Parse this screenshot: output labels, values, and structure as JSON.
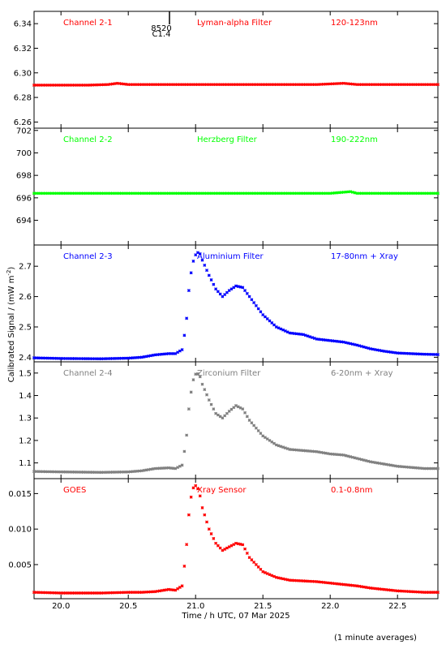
{
  "figure": {
    "ylabel": "Calibrated Signal / (mW m",
    "ylabel_sup": "-2",
    "ylabel_close": ")",
    "xlabel": "Time / h UTC, 07 Mar 2025",
    "footnote": "(1 minute averages)",
    "flare_marker": {
      "time": 20.82,
      "label_top": "8520",
      "label_bottom": "C1.4"
    },
    "x_ticks": [
      "20.0",
      "20.5",
      "21.0",
      "21.5",
      "22.0",
      "22.5"
    ]
  },
  "chart_data": [
    {
      "type": "scatter",
      "channel": "Channel 2-1",
      "filter": "Lyman-alpha Filter",
      "band": "120-123nm",
      "color": "#ff0000",
      "xlim": [
        19.8,
        22.8
      ],
      "ylim": [
        6.255,
        6.35
      ],
      "yticks": [
        "6.26",
        "6.28",
        "6.30",
        "6.32",
        "6.34"
      ],
      "x": [
        19.8,
        20.2,
        20.35,
        20.42,
        20.5,
        20.7,
        21.0,
        21.5,
        21.9,
        22.1,
        22.2,
        22.4,
        22.8
      ],
      "y": [
        6.29,
        6.29,
        6.2905,
        6.2915,
        6.2905,
        6.2905,
        6.2905,
        6.2905,
        6.2905,
        6.2915,
        6.2905,
        6.2905,
        6.2905
      ]
    },
    {
      "type": "scatter",
      "channel": "Channel 2-2",
      "filter": "Herzberg Filter",
      "band": "190-222nm",
      "color": "#00ff00",
      "xlim": [
        19.8,
        22.8
      ],
      "ylim": [
        691.8,
        702.2
      ],
      "yticks": [
        "694",
        "696",
        "698",
        "700",
        "702"
      ],
      "x": [
        19.8,
        20.5,
        21.0,
        21.5,
        22.0,
        22.15,
        22.2,
        22.8
      ],
      "y": [
        696.4,
        696.4,
        696.4,
        696.4,
        696.4,
        696.55,
        696.4,
        696.4
      ],
      "scale": "linear"
    },
    {
      "type": "scatter",
      "channel": "Channel 2-3",
      "filter": "Aluminium Filter",
      "band": "17-80nm + Xray",
      "color": "#0000ff",
      "xlim": [
        19.8,
        22.8
      ],
      "ylim": [
        2.385,
        2.77
      ],
      "yticks": [
        "2.4",
        "2.5",
        "2.6",
        "2.7"
      ],
      "x": [
        19.8,
        20.0,
        20.3,
        20.5,
        20.6,
        20.7,
        20.8,
        20.85,
        20.9,
        20.93,
        20.95,
        20.97,
        20.99,
        21.01,
        21.03,
        21.05,
        21.1,
        21.15,
        21.2,
        21.25,
        21.3,
        21.35,
        21.4,
        21.5,
        21.6,
        21.7,
        21.8,
        21.9,
        22.0,
        22.1,
        22.2,
        22.3,
        22.4,
        22.5,
        22.6,
        22.7,
        22.8
      ],
      "y": [
        2.398,
        2.396,
        2.395,
        2.397,
        2.4,
        2.408,
        2.412,
        2.412,
        2.425,
        2.51,
        2.62,
        2.69,
        2.73,
        2.745,
        2.745,
        2.72,
        2.67,
        2.625,
        2.6,
        2.62,
        2.635,
        2.63,
        2.6,
        2.54,
        2.5,
        2.48,
        2.475,
        2.46,
        2.455,
        2.45,
        2.44,
        2.428,
        2.42,
        2.414,
        2.412,
        2.41,
        2.409
      ]
    },
    {
      "type": "scatter",
      "channel": "Channel 2-4",
      "filter": "Zirconium Filter",
      "band": "6-20nm + Xray",
      "color": "#808080",
      "xlim": [
        19.8,
        22.8
      ],
      "ylim": [
        1.03,
        1.55
      ],
      "yticks": [
        "1.1",
        "1.2",
        "1.3",
        "1.4",
        "1.5"
      ],
      "x": [
        19.8,
        20.0,
        20.3,
        20.5,
        20.6,
        20.7,
        20.8,
        20.85,
        20.9,
        20.93,
        20.95,
        20.97,
        20.99,
        21.01,
        21.03,
        21.05,
        21.1,
        21.15,
        21.2,
        21.25,
        21.3,
        21.35,
        21.4,
        21.5,
        21.6,
        21.7,
        21.8,
        21.9,
        22.0,
        22.1,
        22.2,
        22.3,
        22.4,
        22.5,
        22.6,
        22.7,
        22.8
      ],
      "y": [
        1.062,
        1.06,
        1.058,
        1.06,
        1.065,
        1.075,
        1.078,
        1.075,
        1.09,
        1.2,
        1.34,
        1.43,
        1.49,
        1.5,
        1.49,
        1.45,
        1.38,
        1.32,
        1.3,
        1.33,
        1.355,
        1.34,
        1.29,
        1.22,
        1.18,
        1.16,
        1.155,
        1.15,
        1.14,
        1.135,
        1.12,
        1.105,
        1.095,
        1.085,
        1.08,
        1.075,
        1.075
      ]
    },
    {
      "type": "scatter",
      "channel": "GOES",
      "filter": "Xray Sensor",
      "band": "0.1-0.8nm",
      "color": "#ff0000",
      "xlim": [
        19.8,
        22.8
      ],
      "ylim": [
        0.0002,
        0.0171
      ],
      "yticks": [
        "0.005",
        "0.010",
        "0.015"
      ],
      "x": [
        19.8,
        20.0,
        20.3,
        20.5,
        20.6,
        20.7,
        20.8,
        20.85,
        20.9,
        20.93,
        20.95,
        20.97,
        20.99,
        21.01,
        21.03,
        21.05,
        21.1,
        21.15,
        21.2,
        21.25,
        21.3,
        21.35,
        21.4,
        21.5,
        21.6,
        21.7,
        21.8,
        21.9,
        22.0,
        22.1,
        22.2,
        22.3,
        22.4,
        22.5,
        22.6,
        22.7,
        22.8
      ],
      "y": [
        0.0011,
        0.001,
        0.001,
        0.0011,
        0.0011,
        0.0012,
        0.0015,
        0.0014,
        0.002,
        0.007,
        0.012,
        0.015,
        0.0162,
        0.016,
        0.015,
        0.013,
        0.01,
        0.008,
        0.007,
        0.0075,
        0.008,
        0.0078,
        0.006,
        0.004,
        0.0032,
        0.0028,
        0.0027,
        0.0026,
        0.0024,
        0.0022,
        0.002,
        0.0017,
        0.0015,
        0.0013,
        0.0012,
        0.0011,
        0.0011
      ]
    }
  ]
}
